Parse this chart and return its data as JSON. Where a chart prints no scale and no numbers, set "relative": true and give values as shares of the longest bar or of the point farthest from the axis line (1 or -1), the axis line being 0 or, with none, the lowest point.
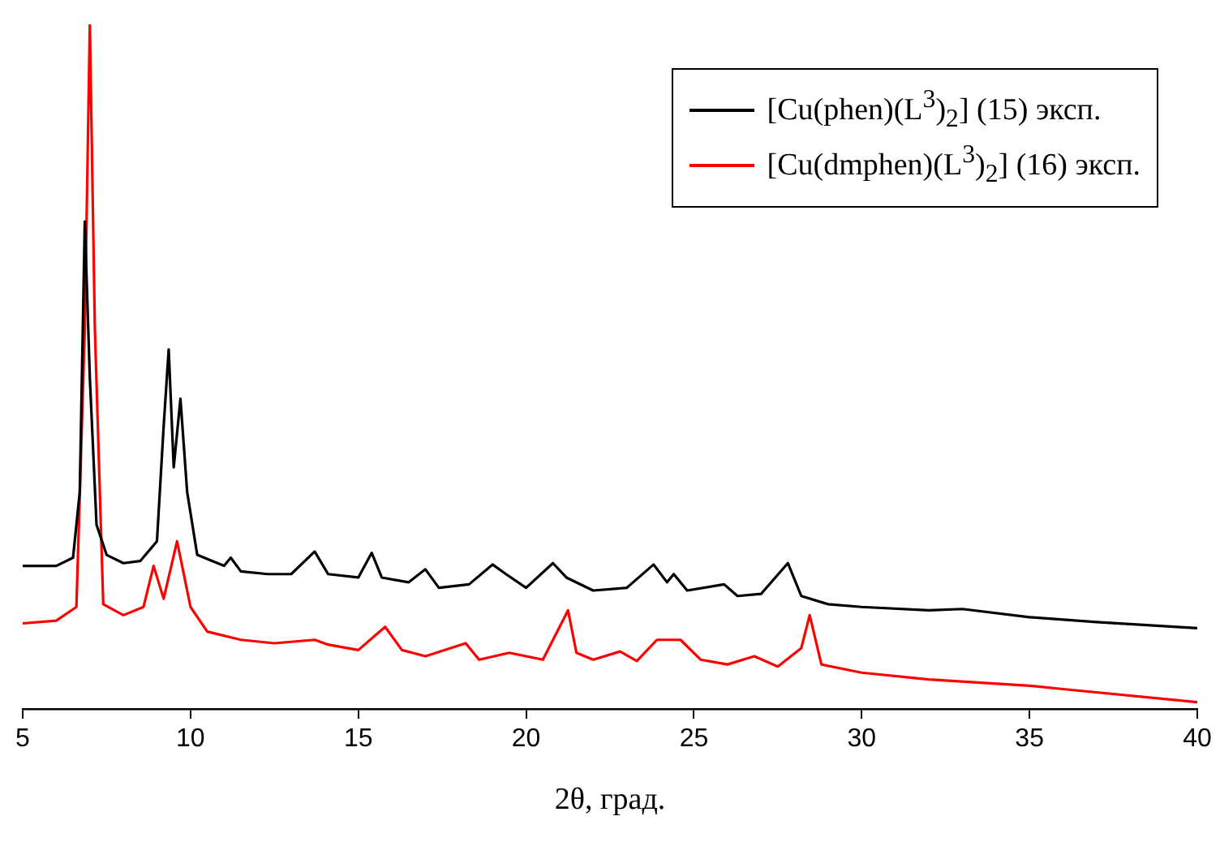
{
  "chart_data": {
    "type": "line",
    "xlabel": "2θ, град.",
    "relative": true,
    "xlim": [
      5,
      40
    ],
    "xticks": [
      5,
      10,
      15,
      20,
      25,
      30,
      35,
      40
    ],
    "grid": false,
    "legend": "top right",
    "marker": "none",
    "line_style": "solid",
    "series": [
      {
        "name": "[Cu(phen)(L$^{3}$)$_{2}$] (15) эксп.",
        "color": "#000000",
        "x": [
          5,
          6,
          6.5,
          6.7,
          6.85,
          7.0,
          7.2,
          7.5,
          8,
          8.5,
          9.0,
          9.2,
          9.35,
          9.5,
          9.7,
          9.9,
          10.2,
          11,
          11.2,
          11.5,
          12.3,
          13,
          13.7,
          14.1,
          15,
          15.4,
          15.7,
          16.5,
          17,
          17.4,
          18.3,
          19,
          19.4,
          20,
          20.8,
          21.2,
          22,
          23,
          23.8,
          24.2,
          24.4,
          24.8,
          25.9,
          26.3,
          27,
          27.8,
          28.2,
          29,
          30,
          32,
          33,
          35,
          37,
          40
        ],
        "values": [
          0.209,
          0.209,
          0.221,
          0.317,
          0.712,
          0.484,
          0.269,
          0.225,
          0.213,
          0.216,
          0.245,
          0.413,
          0.525,
          0.353,
          0.453,
          0.317,
          0.225,
          0.209,
          0.221,
          0.201,
          0.197,
          0.197,
          0.23,
          0.197,
          0.192,
          0.228,
          0.192,
          0.185,
          0.204,
          0.177,
          0.182,
          0.211,
          0.197,
          0.177,
          0.213,
          0.192,
          0.173,
          0.177,
          0.211,
          0.185,
          0.197,
          0.173,
          0.182,
          0.165,
          0.168,
          0.213,
          0.165,
          0.153,
          0.149,
          0.144,
          0.146,
          0.134,
          0.127,
          0.118
        ]
      },
      {
        "name": "[Cu(dmphen)(L$^{3}$)$_{2}$] (16) эксп.",
        "color": "#ff0000",
        "x": [
          5,
          6,
          6.6,
          6.85,
          7.0,
          7.15,
          7.4,
          8,
          8.6,
          8.9,
          9.2,
          9.6,
          10,
          10.5,
          11.5,
          12.5,
          13.7,
          14.1,
          15,
          15.8,
          16.3,
          17,
          18.2,
          18.6,
          19.5,
          20.5,
          21.25,
          21.5,
          22,
          22.8,
          23.3,
          23.9,
          24.6,
          25.2,
          26,
          26.8,
          27.5,
          28.2,
          28.45,
          28.8,
          30,
          32,
          35,
          36,
          40
        ],
        "values": [
          0.125,
          0.129,
          0.149,
          0.556,
          1,
          0.556,
          0.153,
          0.137,
          0.149,
          0.209,
          0.161,
          0.245,
          0.149,
          0.113,
          0.101,
          0.096,
          0.101,
          0.094,
          0.086,
          0.12,
          0.086,
          0.077,
          0.096,
          0.072,
          0.082,
          0.072,
          0.144,
          0.082,
          0.072,
          0.084,
          0.07,
          0.101,
          0.101,
          0.072,
          0.065,
          0.077,
          0.062,
          0.089,
          0.137,
          0.065,
          0.053,
          0.043,
          0.034,
          0.029,
          0.01
        ]
      }
    ]
  }
}
